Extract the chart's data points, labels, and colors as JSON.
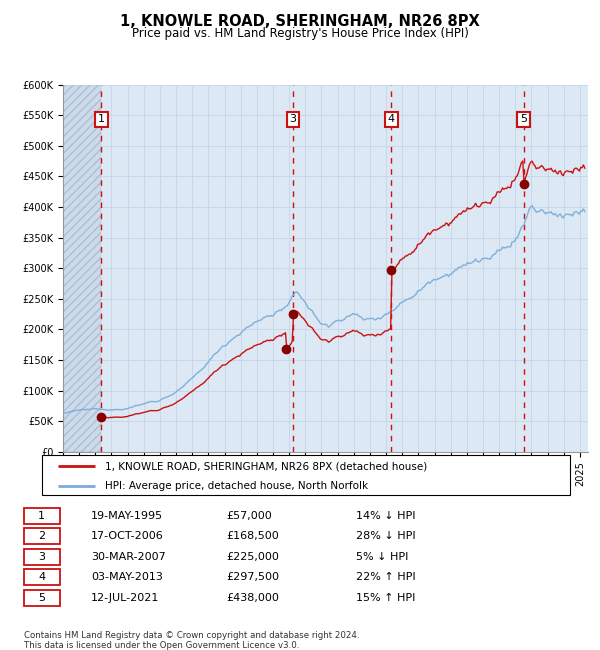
{
  "title": "1, KNOWLE ROAD, SHERINGHAM, NR26 8PX",
  "subtitle": "Price paid vs. HM Land Registry's House Price Index (HPI)",
  "legend_line1": "1, KNOWLE ROAD, SHERINGHAM, NR26 8PX (detached house)",
  "legend_line2": "HPI: Average price, detached house, North Norfolk",
  "footnote": "Contains HM Land Registry data © Crown copyright and database right 2024.\nThis data is licensed under the Open Government Licence v3.0.",
  "sales": [
    {
      "num": 1,
      "date_dec": 1995.37,
      "price": 57000
    },
    {
      "num": 2,
      "date_dec": 2006.79,
      "price": 168500
    },
    {
      "num": 3,
      "date_dec": 2007.24,
      "price": 225000
    },
    {
      "num": 4,
      "date_dec": 2013.33,
      "price": 297500
    },
    {
      "num": 5,
      "date_dec": 2021.52,
      "price": 438000
    }
  ],
  "vline_sale_indices": [
    0,
    2,
    3,
    4
  ],
  "box_labels": [
    "1",
    "3",
    "4",
    "5"
  ],
  "table_rows": [
    {
      "num": "1",
      "date": "19-MAY-1995",
      "price": "£57,000",
      "pct": "14%",
      "dir": "↓",
      "ref": "HPI"
    },
    {
      "num": "2",
      "date": "17-OCT-2006",
      "price": "£168,500",
      "pct": "28%",
      "dir": "↓",
      "ref": "HPI"
    },
    {
      "num": "3",
      "date": "30-MAR-2007",
      "price": "£225,000",
      "pct": "5%",
      "dir": "↓",
      "ref": "HPI"
    },
    {
      "num": "4",
      "date": "03-MAY-2013",
      "price": "£297,500",
      "pct": "22%",
      "dir": "↑",
      "ref": "HPI"
    },
    {
      "num": "5",
      "date": "12-JUL-2021",
      "price": "£438,000",
      "pct": "15%",
      "dir": "↑",
      "ref": "HPI"
    }
  ],
  "hpi_color": "#7aaddb",
  "price_color": "#cc1111",
  "sale_dot_color": "#880000",
  "vline_color": "#cc1111",
  "grid_color": "#c8d8ea",
  "bg_color": "#dce8f4",
  "ylim": [
    0,
    600000
  ],
  "xlim_start": 1993.0,
  "xlim_end": 2025.5,
  "yticks": [
    0,
    50000,
    100000,
    150000,
    200000,
    250000,
    300000,
    350000,
    400000,
    450000,
    500000,
    550000,
    600000
  ],
  "ytick_labels": [
    "£0",
    "£50K",
    "£100K",
    "£150K",
    "£200K",
    "£250K",
    "£300K",
    "£350K",
    "£400K",
    "£450K",
    "£500K",
    "£550K",
    "£600K"
  ],
  "xticks": [
    1993,
    1994,
    1995,
    1996,
    1997,
    1998,
    1999,
    2000,
    2001,
    2002,
    2003,
    2004,
    2005,
    2006,
    2007,
    2008,
    2009,
    2010,
    2011,
    2012,
    2013,
    2014,
    2015,
    2016,
    2017,
    2018,
    2019,
    2020,
    2021,
    2022,
    2023,
    2024,
    2025
  ]
}
